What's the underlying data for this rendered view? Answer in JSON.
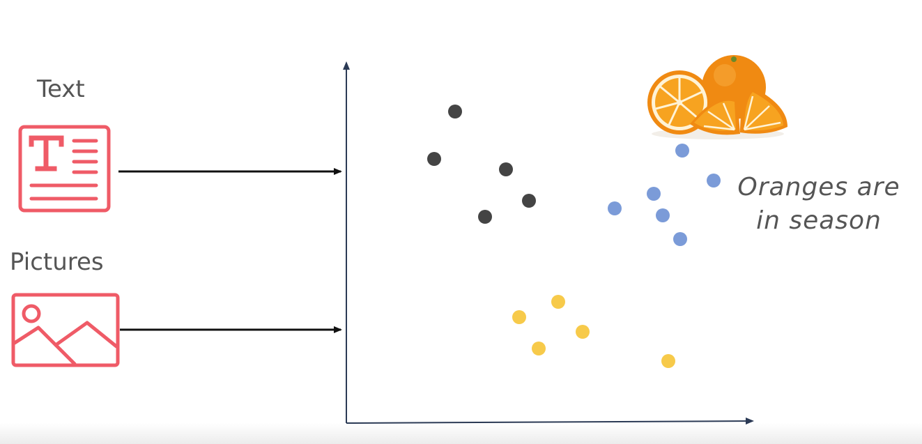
{
  "inputs": {
    "text_label": "Text",
    "pictures_label": "Pictures"
  },
  "caption": {
    "line1": "Oranges are",
    "line2": "in season"
  },
  "colors": {
    "icon_red": "#ef5b67",
    "axis": "#2b3a55",
    "arrow": "#111111",
    "dark_points": "#444444",
    "blue_points": "#7b9bd8",
    "yellow_points": "#f7ca4a",
    "orange": "#f08a12"
  },
  "icons": {
    "text_icon": "text-document-icon",
    "picture_icon": "image-landscape-icon",
    "fruit": "oranges-image"
  }
}
